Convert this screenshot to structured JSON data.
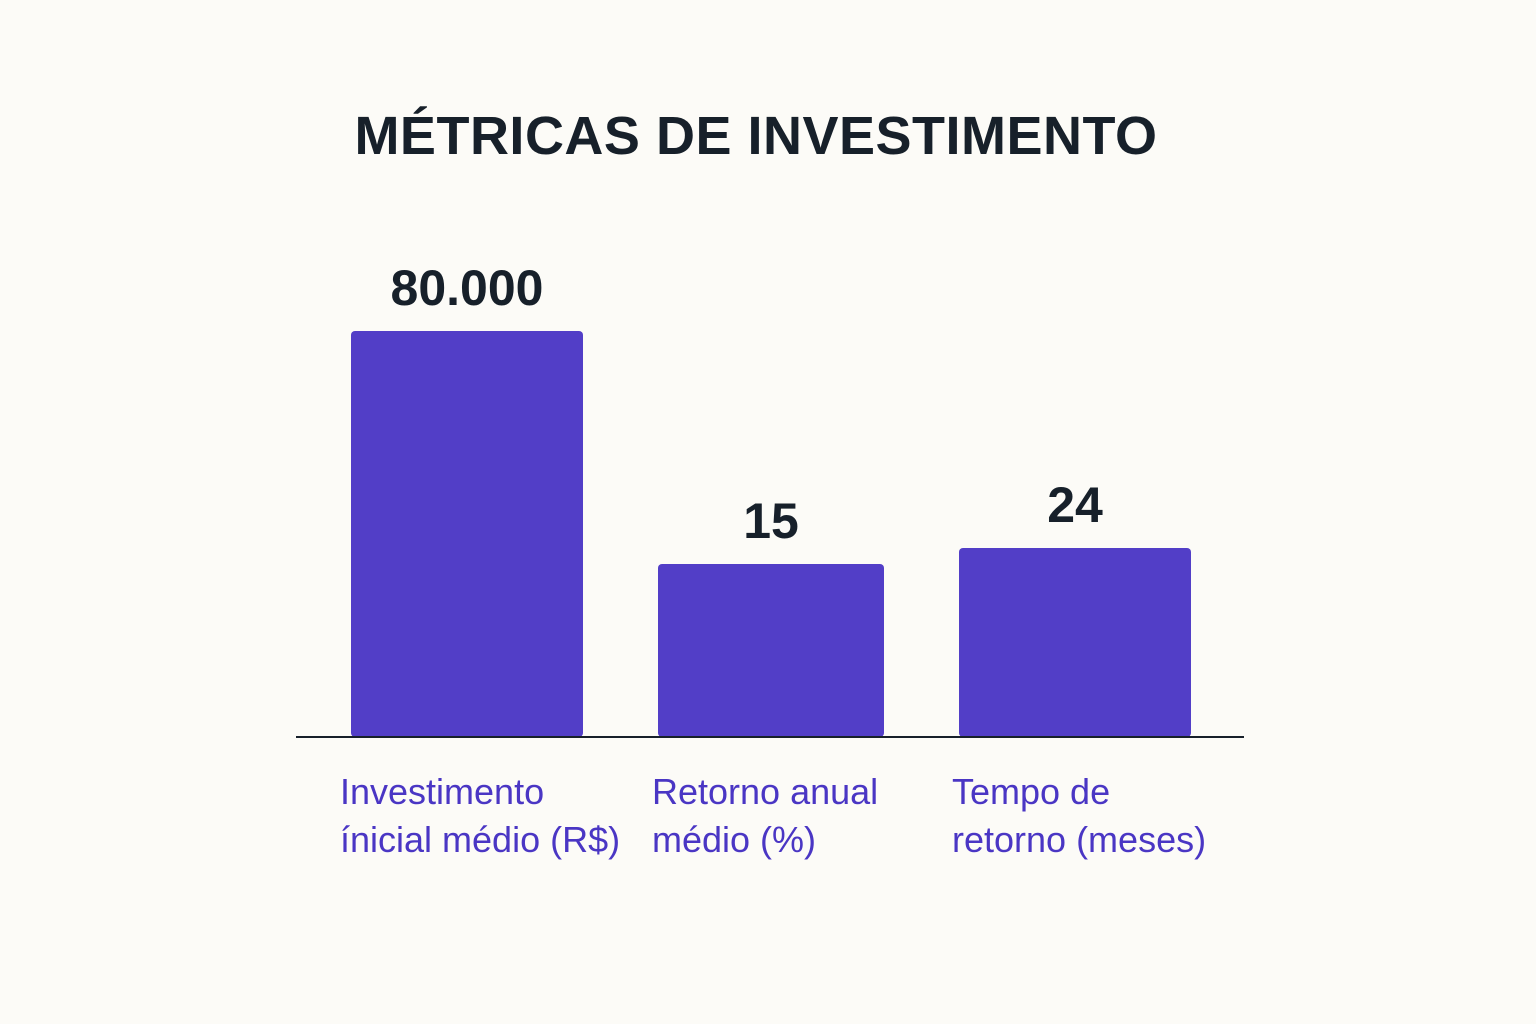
{
  "chart_data": {
    "type": "bar",
    "title": "MÉTRICAS DE INVESTIMENTO",
    "categories": [
      "Investimento\nínicial médio (R$)",
      "Retorno anual\nmédio (%)",
      "Tempo de\nretorno (meses)"
    ],
    "values": [
      80000,
      15,
      24
    ],
    "value_labels": [
      "80.000",
      "15",
      "24"
    ],
    "bar_color": "#523ec7",
    "text_color": "#17202a",
    "category_label_color": "#4a36c4",
    "axis_color": "#17202a",
    "grid": false,
    "legend": "none",
    "xlabel": "",
    "ylabel": ""
  }
}
